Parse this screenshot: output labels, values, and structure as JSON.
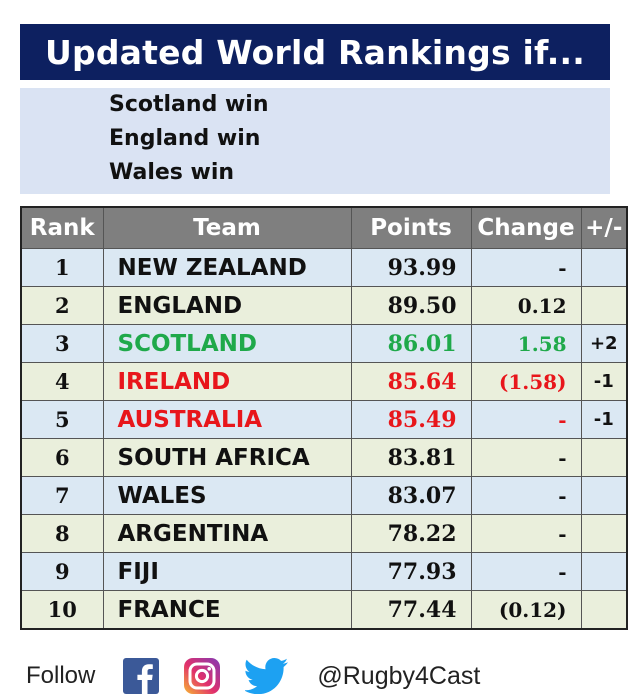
{
  "title": "Updated World Rankings if...",
  "scenario": [
    "Scotland win",
    "England win",
    "Wales win"
  ],
  "table": {
    "headers": {
      "rank": "Rank",
      "team": "Team",
      "points": "Points",
      "change": "Change",
      "plus_minus": "+/-"
    },
    "rows": [
      {
        "rank": "1",
        "team": "NEW ZEALAND",
        "points": "93.99",
        "change": "-",
        "plus_minus": "",
        "color": "#111111"
      },
      {
        "rank": "2",
        "team": "ENGLAND",
        "points": "89.50",
        "change": "0.12",
        "plus_minus": "",
        "color": "#111111"
      },
      {
        "rank": "3",
        "team": "SCOTLAND",
        "points": "86.01",
        "change": "1.58",
        "plus_minus": "+2",
        "color": "#1fa94a"
      },
      {
        "rank": "4",
        "team": "IRELAND",
        "points": "85.64",
        "change": "(1.58)",
        "plus_minus": "-1",
        "color": "#e8161b"
      },
      {
        "rank": "5",
        "team": "AUSTRALIA",
        "points": "85.49",
        "change": "-",
        "plus_minus": "-1",
        "color": "#e8161b"
      },
      {
        "rank": "6",
        "team": "SOUTH AFRICA",
        "points": "83.81",
        "change": "-",
        "plus_minus": "",
        "color": "#111111"
      },
      {
        "rank": "7",
        "team": "WALES",
        "points": "83.07",
        "change": "-",
        "plus_minus": "",
        "color": "#111111"
      },
      {
        "rank": "8",
        "team": "ARGENTINA",
        "points": "78.22",
        "change": "-",
        "plus_minus": "",
        "color": "#111111"
      },
      {
        "rank": "9",
        "team": "FIJI",
        "points": "77.93",
        "change": "-",
        "plus_minus": "",
        "color": "#111111"
      },
      {
        "rank": "10",
        "team": "FRANCE",
        "points": "77.44",
        "change": "(0.12)",
        "plus_minus": "",
        "color": "#111111"
      }
    ]
  },
  "footer": {
    "follow_label": "Follow",
    "icons": [
      "facebook-icon",
      "instagram-icon",
      "twitter-icon"
    ],
    "handle": "@Rugby4Cast"
  },
  "colors": {
    "title_bg": "#0d2060",
    "scenario_bg": "#dae3f3",
    "header_bg": "#7f7f7f",
    "row_blue": "#dbe8f3",
    "row_green": "#eaefdc",
    "gain_green": "#1fa94a",
    "loss_red": "#e8161b",
    "facebook_blue": "#3b5998",
    "twitter_blue": "#1da1f2"
  }
}
